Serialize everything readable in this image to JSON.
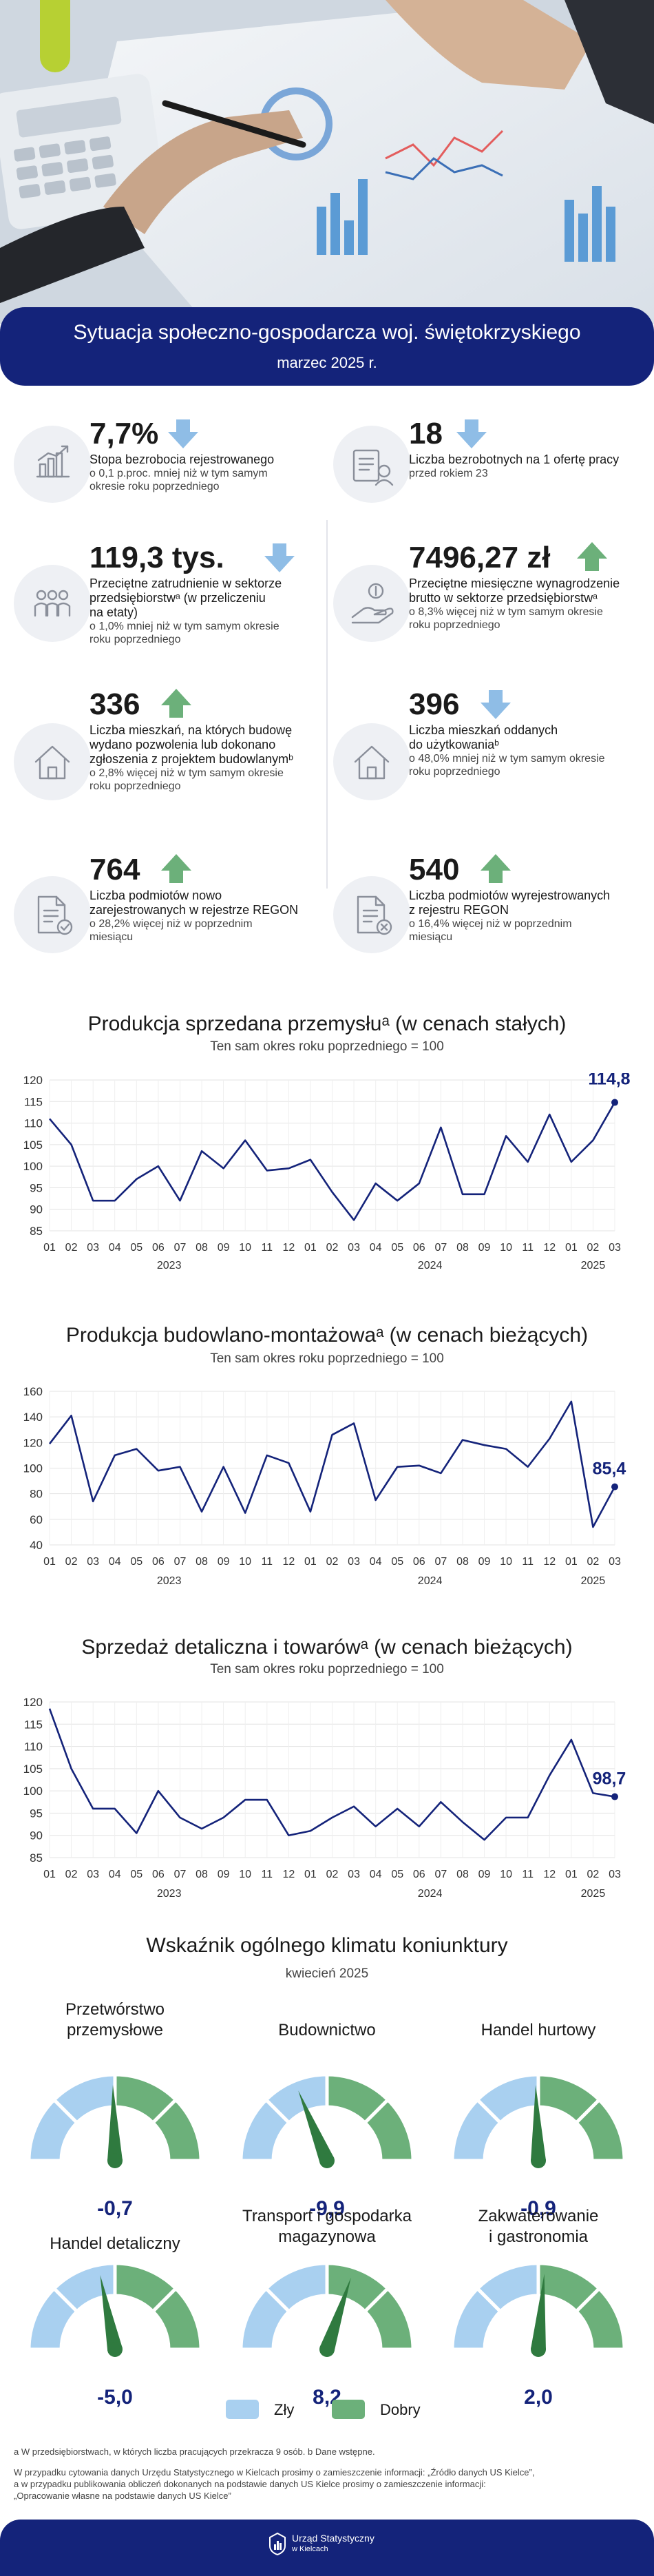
{
  "header": {
    "title": "Sytuacja społeczno-gospodarcza woj. świętokrzyskiego",
    "subtitle": "marzec 2025 r."
  },
  "colors": {
    "navy": "#14237a",
    "up": "#6cb07a",
    "down": "#8fbde6",
    "lime": "#b7d033",
    "bad": "#a9d0f0",
    "good": "#6cb07a"
  },
  "indicators": [
    {
      "value": "7,7%",
      "direction": "down",
      "icon": "bar-chart-icon",
      "desc": [
        "Stopa bezrobocia rejestrowanego"
      ],
      "sub": [
        "o 0,1 p.proc. mniej niż w tym samym",
        "okresie roku poprzedniego"
      ]
    },
    {
      "value": "18",
      "direction": "down",
      "icon": "job-offer-icon",
      "desc": [
        "Liczba bezrobotnych na 1 ofertę pracy"
      ],
      "sub": [
        "przed rokiem 23"
      ]
    },
    {
      "value": "119,3 tys.",
      "direction": "down",
      "icon": "people-icon",
      "desc": [
        "Przeciętne zatrudnienie w sektorze",
        "przedsiębiorstwᵃ (w przeliczeniu",
        "na etaty)"
      ],
      "sub": [
        "o 1,0% mniej niż w tym samym okresie",
        "roku poprzedniego"
      ]
    },
    {
      "value": "7496,27 zł",
      "direction": "up",
      "icon": "salary-hand-icon",
      "desc": [
        "Przeciętne miesięczne wynagrodzenie",
        "brutto w sektorze przedsiębiorstwᵃ"
      ],
      "sub": [
        "o 8,3% więcej niż w tym samym okresie",
        "roku poprzedniego"
      ]
    },
    {
      "value": "336",
      "direction": "up",
      "icon": "house-permit-icon",
      "desc": [
        "Liczba mieszkań, na których budowę",
        "wydano pozwolenia lub dokonano",
        "zgłoszenia z projektem budowlanymᵇ"
      ],
      "sub": [
        "o 2,8% więcej niż w tym samym okresie",
        "roku poprzedniego"
      ]
    },
    {
      "value": "396",
      "direction": "down",
      "icon": "house-icon",
      "desc": [
        "Liczba mieszkań oddanych",
        "do użytkowaniaᵇ"
      ],
      "sub": [
        "o 48,0% mniej niż w tym samym okresie",
        "roku poprzedniego"
      ]
    },
    {
      "value": "764",
      "direction": "up",
      "icon": "document-check-icon",
      "desc": [
        "Liczba podmiotów nowo",
        "zarejestrowanych w rejestrze REGON"
      ],
      "sub": [
        "o 28,2% więcej niż w poprzednim",
        "miesiącu"
      ]
    },
    {
      "value": "540",
      "direction": "up",
      "icon": "document-remove-icon",
      "desc": [
        "Liczba podmiotów wyrejestrowanych",
        "z rejestru REGON"
      ],
      "sub": [
        "o 16,4% więcej niż w poprzednim",
        "miesiącu"
      ]
    }
  ],
  "chart_data": [
    {
      "type": "line",
      "title": "Produkcja sprzedana przemysłuᵃ (w cenach stałych)",
      "subtitle": "Ten sam okres roku poprzedniego = 100",
      "categories": [
        "01",
        "02",
        "03",
        "04",
        "05",
        "06",
        "07",
        "08",
        "09",
        "10",
        "11",
        "12",
        "01",
        "02",
        "03",
        "04",
        "05",
        "06",
        "07",
        "08",
        "09",
        "10",
        "11",
        "12",
        "01",
        "02",
        "03"
      ],
      "years": [
        {
          "label": "2023",
          "from": 0,
          "to": 11
        },
        {
          "label": "2024",
          "from": 12,
          "to": 23
        },
        {
          "label": "2025",
          "from": 24,
          "to": 26
        }
      ],
      "values": [
        111,
        105,
        92,
        92,
        97,
        100,
        92,
        103.5,
        99.5,
        106,
        99,
        99.5,
        101.5,
        94,
        87.5,
        96,
        92,
        96,
        109,
        93.5,
        93.5,
        107,
        101,
        112,
        101,
        106,
        114.8
      ],
      "last_label": "114,8",
      "ylim": [
        85,
        120
      ],
      "yticks": [
        85,
        90,
        95,
        100,
        105,
        110,
        115,
        120
      ],
      "grid": true
    },
    {
      "type": "line",
      "title": "Produkcja budowlano-montażowaᵃ (w cenach bieżących)",
      "subtitle": "Ten sam okres roku poprzedniego = 100",
      "categories": [
        "01",
        "02",
        "03",
        "04",
        "05",
        "06",
        "07",
        "08",
        "09",
        "10",
        "11",
        "12",
        "01",
        "02",
        "03",
        "04",
        "05",
        "06",
        "07",
        "08",
        "09",
        "10",
        "11",
        "12",
        "01",
        "02",
        "03"
      ],
      "years": [
        {
          "label": "2023",
          "from": 0,
          "to": 11
        },
        {
          "label": "2024",
          "from": 12,
          "to": 23
        },
        {
          "label": "2025",
          "from": 24,
          "to": 26
        }
      ],
      "values": [
        119,
        141,
        74,
        110,
        115,
        98,
        101,
        66,
        101,
        65,
        110,
        104,
        66,
        126,
        135,
        75,
        101,
        102,
        96,
        122,
        118,
        115,
        101,
        123,
        152,
        54,
        85.4
      ],
      "last_label": "85,4",
      "ylim": [
        40,
        160
      ],
      "yticks": [
        40,
        60,
        80,
        100,
        120,
        140,
        160
      ],
      "grid": true
    },
    {
      "type": "line",
      "title": "Sprzedaż detaliczna i towarówᵃ (w cenach bieżących)",
      "subtitle": "Ten sam okres roku poprzedniego = 100",
      "categories": [
        "01",
        "02",
        "03",
        "04",
        "05",
        "06",
        "07",
        "08",
        "09",
        "10",
        "11",
        "12",
        "01",
        "02",
        "03",
        "04",
        "05",
        "06",
        "07",
        "08",
        "09",
        "10",
        "11",
        "12",
        "01",
        "02",
        "03"
      ],
      "years": [
        {
          "label": "2023",
          "from": 0,
          "to": 11
        },
        {
          "label": "2024",
          "from": 12,
          "to": 23
        },
        {
          "label": "2025",
          "from": 24,
          "to": 26
        }
      ],
      "values": [
        118.5,
        105,
        96,
        96,
        90.5,
        100,
        94,
        91.5,
        94,
        98,
        98,
        90,
        91,
        94,
        96.5,
        92,
        96,
        92,
        97.5,
        93,
        89,
        94,
        94,
        103.5,
        111.5,
        99.5,
        98.7
      ],
      "last_label": "98,7",
      "ylim": [
        85,
        120
      ],
      "yticks": [
        85,
        90,
        95,
        100,
        105,
        110,
        115,
        120
      ],
      "grid": true
    }
  ],
  "climate": {
    "title": "Wskaźnik ogólnego klimatu koniunktury",
    "subtitle": "kwiecień 2025",
    "legend": {
      "bad": "Zły",
      "good": "Dobry"
    },
    "gauges": [
      {
        "title": [
          "Przetwórstwo",
          "przemysłowe"
        ],
        "value": -0.7,
        "label": "-0,7"
      },
      {
        "title": [
          "Budownictwo"
        ],
        "value": -9.9,
        "label": "-9,9"
      },
      {
        "title": [
          "Handel hurtowy"
        ],
        "value": -0.9,
        "label": "-0,9"
      },
      {
        "title": [
          "Handel detaliczny"
        ],
        "value": -5.0,
        "label": "-5,0"
      },
      {
        "title": [
          "Transport i gospodarka",
          "magazynowa"
        ],
        "value": 8.2,
        "label": "8,2"
      },
      {
        "title": [
          "Zakwaterowanie",
          "i gastronomia"
        ],
        "value": 2.0,
        "label": "2,0"
      }
    ]
  },
  "footnotes": {
    "a": "a W przedsiębiorstwach, w których liczba pracujących przekracza 9 osób. b Dane wstępne.",
    "b": "W przypadku cytowania danych Urzędu Statystycznego w Kielcach prosimy o zamieszczenie informacji: „Źródło danych US Kielce”,",
    "c": "a w przypadku publikowania obliczeń dokonanych na podstawie danych US Kielce prosimy o zamieszczenie informacji:",
    "d": "„Opracowanie własne na podstawie danych US Kielce”"
  },
  "footer": {
    "logo_line1": "Urząd Statystyczny",
    "logo_line2": "w Kielcach"
  }
}
